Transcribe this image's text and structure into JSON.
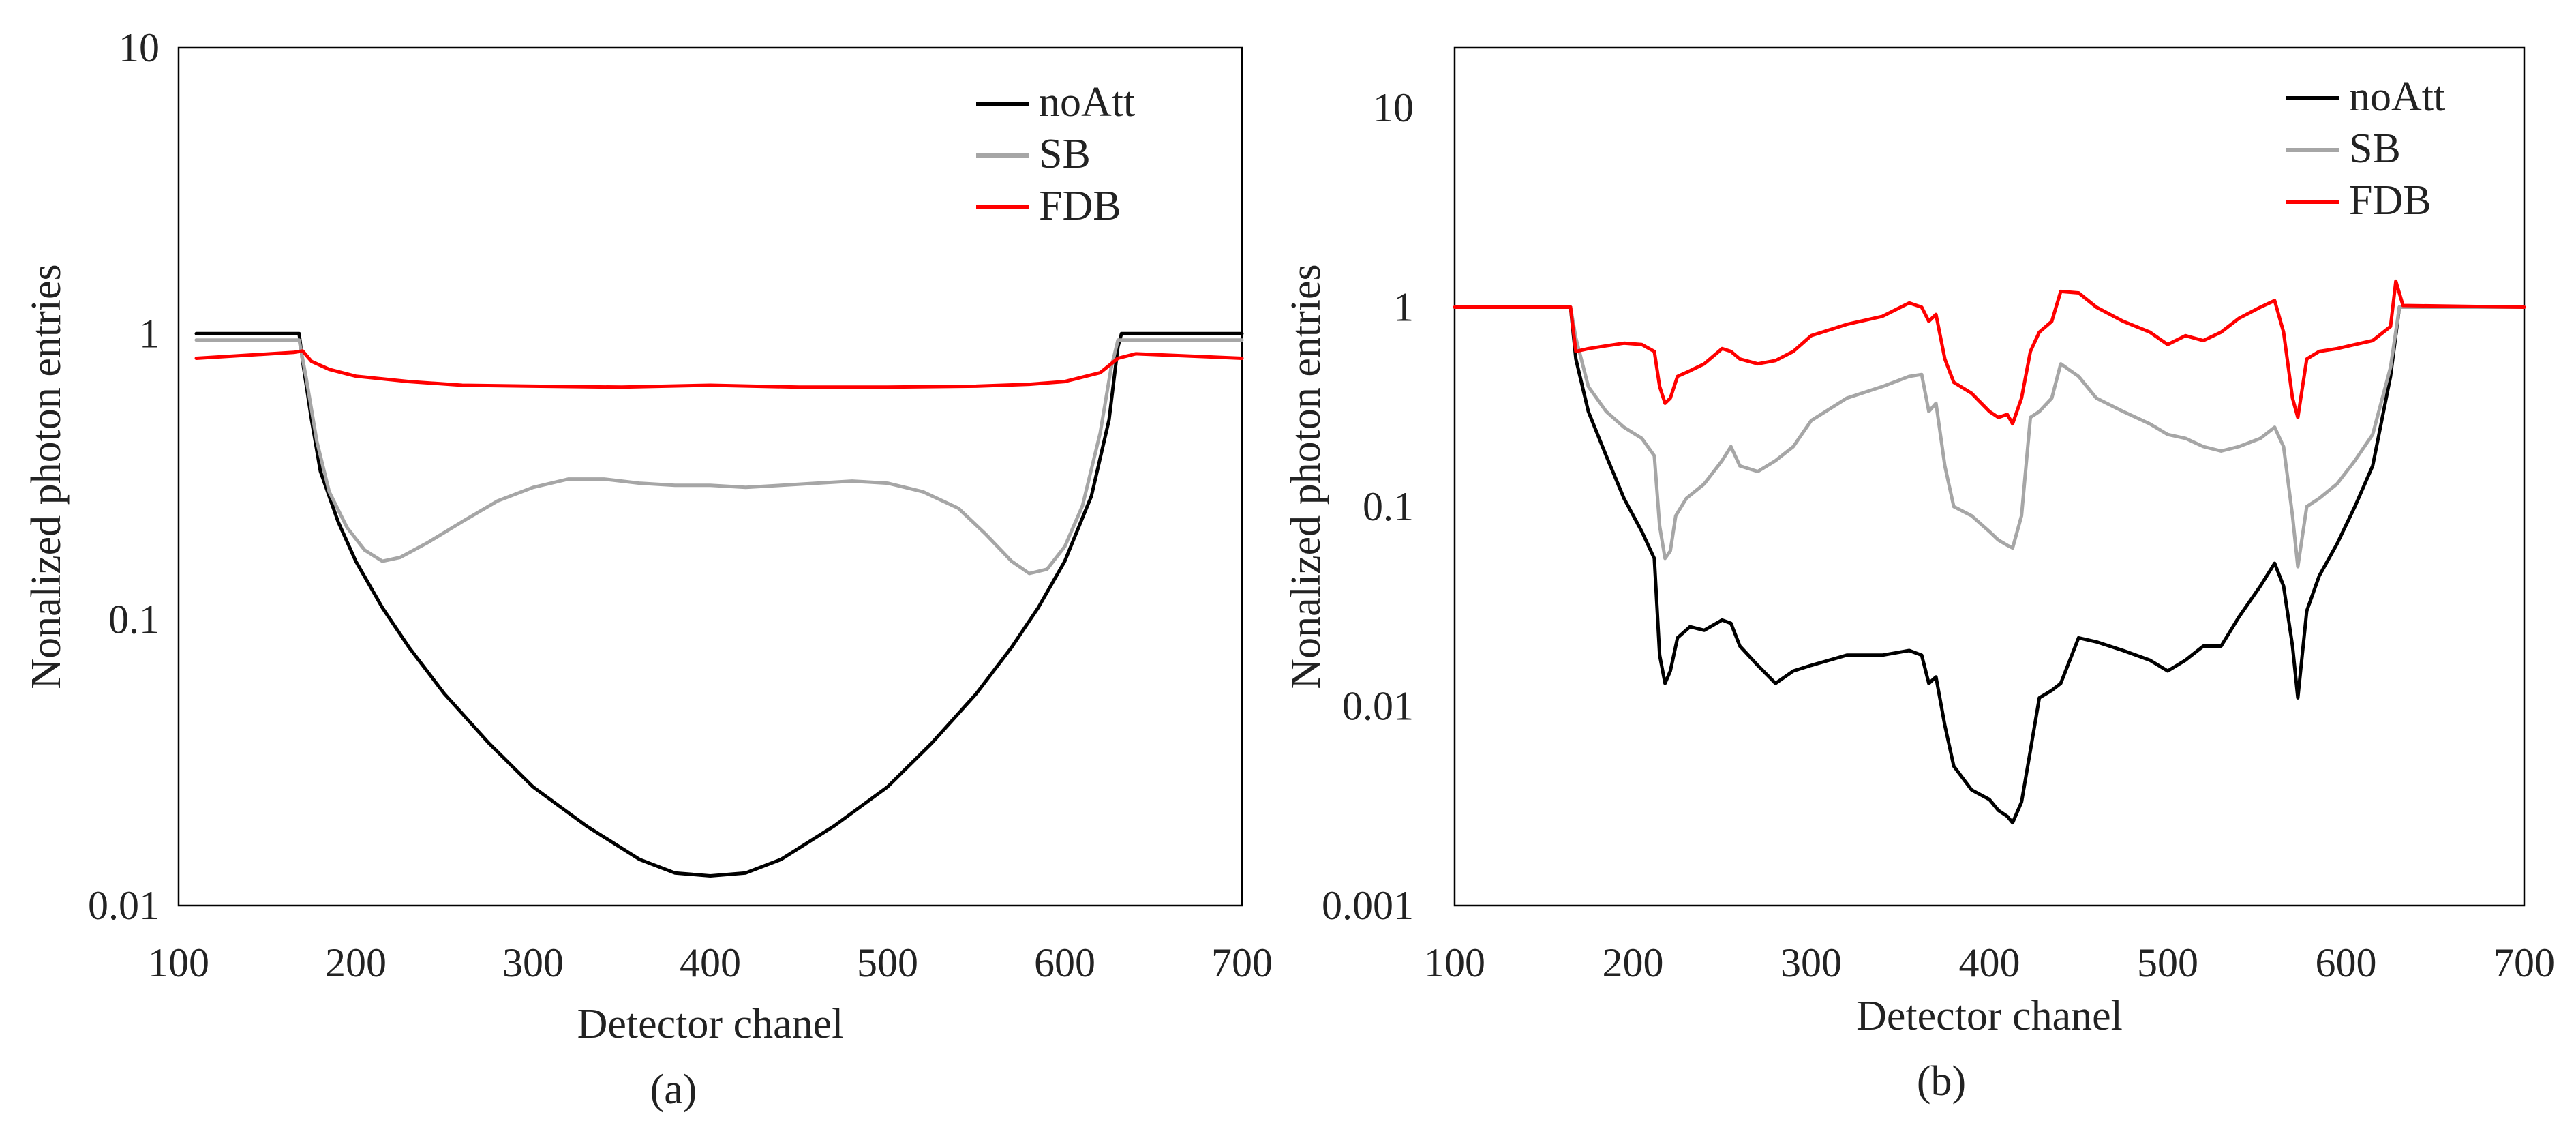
{
  "figure": {
    "panel_labels": [
      "(a)",
      "(b)"
    ]
  },
  "chart_data": [
    {
      "type": "line",
      "panel": "(a)",
      "title": "",
      "xlabel": "Detector chanel",
      "ylabel": "Nonalized photon entries",
      "xlim": [
        100,
        700
      ],
      "ylim": [
        0.01,
        10
      ],
      "yscale": "log",
      "xticks": [
        "100",
        "200",
        "300",
        "400",
        "500",
        "600",
        "700"
      ],
      "yticks": [
        "0.01",
        "0.1",
        "1",
        "10"
      ],
      "grid": false,
      "legend_position": "top-right",
      "series": [
        {
          "name": "noAtt",
          "color": "#000000",
          "x": [
            110,
            168,
            170,
            175,
            180,
            190,
            200,
            215,
            230,
            250,
            275,
            300,
            330,
            360,
            380,
            400,
            420,
            440,
            470,
            500,
            525,
            550,
            570,
            585,
            600,
            615,
            625,
            630,
            632,
            700
          ],
          "y": [
            1.0,
            1.0,
            0.8,
            0.5,
            0.33,
            0.22,
            0.16,
            0.11,
            0.08,
            0.055,
            0.037,
            0.026,
            0.019,
            0.0145,
            0.013,
            0.0127,
            0.013,
            0.0145,
            0.019,
            0.026,
            0.037,
            0.055,
            0.08,
            0.11,
            0.16,
            0.27,
            0.5,
            0.9,
            1.0,
            1.0
          ]
        },
        {
          "name": "SB",
          "color": "#a6a6a6",
          "x": [
            110,
            168,
            172,
            178,
            185,
            195,
            205,
            215,
            225,
            240,
            260,
            280,
            300,
            320,
            340,
            360,
            380,
            400,
            420,
            440,
            460,
            480,
            500,
            520,
            540,
            555,
            570,
            580,
            590,
            600,
            610,
            620,
            626,
            630,
            700
          ],
          "y": [
            0.95,
            0.95,
            0.7,
            0.42,
            0.28,
            0.21,
            0.175,
            0.16,
            0.165,
            0.185,
            0.22,
            0.26,
            0.29,
            0.31,
            0.31,
            0.3,
            0.295,
            0.295,
            0.29,
            0.295,
            0.3,
            0.305,
            0.3,
            0.28,
            0.245,
            0.2,
            0.16,
            0.145,
            0.15,
            0.18,
            0.25,
            0.45,
            0.75,
            0.95,
            0.95
          ]
        },
        {
          "name": "FDB",
          "color": "#ff0000",
          "x": [
            110,
            165,
            170,
            175,
            185,
            200,
            230,
            260,
            300,
            350,
            400,
            450,
            500,
            550,
            580,
            600,
            620,
            630,
            640,
            700
          ],
          "y": [
            0.82,
            0.86,
            0.87,
            0.8,
            0.75,
            0.71,
            0.68,
            0.66,
            0.655,
            0.65,
            0.66,
            0.65,
            0.65,
            0.655,
            0.665,
            0.68,
            0.73,
            0.82,
            0.85,
            0.82
          ]
        }
      ]
    },
    {
      "type": "line",
      "panel": "(b)",
      "title": "",
      "xlabel": "Detector chanel",
      "ylabel": "Nonalized photon entries",
      "xlim": [
        100,
        700
      ],
      "ylim": [
        0.001,
        20
      ],
      "yscale": "log",
      "xticks": [
        "100",
        "200",
        "300",
        "400",
        "500",
        "600",
        "700"
      ],
      "yticks": [
        "0.001",
        "0.01",
        "0.1",
        "1",
        "10"
      ],
      "grid": false,
      "legend_position": "top-right",
      "series": [
        {
          "name": "noAtt",
          "color": "#000000",
          "x": [
            100,
            165,
            168,
            175,
            185,
            195,
            205,
            212,
            215,
            218,
            221,
            225,
            232,
            240,
            250,
            255,
            260,
            270,
            280,
            290,
            300,
            320,
            340,
            355,
            362,
            366,
            370,
            375,
            380,
            390,
            400,
            405,
            410,
            413,
            418,
            423,
            428,
            435,
            440,
            450,
            460,
            475,
            490,
            500,
            510,
            520,
            530,
            540,
            552,
            560,
            565,
            570,
            573,
            578,
            585,
            595,
            605,
            615,
            625,
            630,
            700
          ],
          "y": [
            1.0,
            1.0,
            0.55,
            0.3,
            0.18,
            0.11,
            0.075,
            0.055,
            0.018,
            0.013,
            0.015,
            0.022,
            0.025,
            0.024,
            0.027,
            0.026,
            0.02,
            0.016,
            0.013,
            0.015,
            0.016,
            0.018,
            0.018,
            0.019,
            0.018,
            0.013,
            0.014,
            0.008,
            0.005,
            0.0038,
            0.0034,
            0.003,
            0.0028,
            0.0026,
            0.0033,
            0.006,
            0.011,
            0.012,
            0.013,
            0.022,
            0.021,
            0.019,
            0.017,
            0.015,
            0.017,
            0.02,
            0.02,
            0.028,
            0.04,
            0.052,
            0.04,
            0.02,
            0.011,
            0.03,
            0.045,
            0.065,
            0.1,
            0.16,
            0.45,
            1.0,
            1.0
          ]
        },
        {
          "name": "SB",
          "color": "#a6a6a6",
          "x": [
            100,
            165,
            168,
            175,
            185,
            195,
            205,
            212,
            215,
            218,
            221,
            224,
            230,
            240,
            250,
            255,
            260,
            270,
            280,
            290,
            300,
            320,
            340,
            355,
            362,
            366,
            370,
            375,
            380,
            390,
            400,
            405,
            410,
            413,
            418,
            423,
            428,
            435,
            440,
            450,
            460,
            475,
            490,
            500,
            510,
            520,
            530,
            540,
            552,
            560,
            565,
            570,
            573,
            578,
            585,
            595,
            605,
            615,
            625,
            630,
            700
          ],
          "y": [
            1.0,
            1.0,
            0.7,
            0.4,
            0.3,
            0.25,
            0.22,
            0.18,
            0.08,
            0.055,
            0.06,
            0.09,
            0.11,
            0.13,
            0.17,
            0.2,
            0.16,
            0.15,
            0.17,
            0.2,
            0.27,
            0.35,
            0.4,
            0.45,
            0.46,
            0.3,
            0.33,
            0.16,
            0.1,
            0.09,
            0.075,
            0.068,
            0.064,
            0.062,
            0.09,
            0.28,
            0.3,
            0.35,
            0.52,
            0.45,
            0.35,
            0.3,
            0.26,
            0.23,
            0.22,
            0.2,
            0.19,
            0.2,
            0.22,
            0.25,
            0.2,
            0.09,
            0.05,
            0.1,
            0.11,
            0.13,
            0.17,
            0.23,
            0.5,
            1.0,
            1.0
          ]
        },
        {
          "name": "FDB",
          "color": "#ff0000",
          "x": [
            100,
            165,
            168,
            175,
            185,
            195,
            205,
            212,
            215,
            218,
            221,
            225,
            232,
            240,
            250,
            255,
            260,
            270,
            280,
            290,
            300,
            320,
            340,
            355,
            362,
            366,
            370,
            375,
            380,
            390,
            400,
            405,
            410,
            413,
            418,
            423,
            428,
            435,
            440,
            450,
            460,
            475,
            490,
            500,
            510,
            520,
            530,
            540,
            552,
            560,
            565,
            570,
            573,
            578,
            585,
            595,
            605,
            615,
            625,
            628,
            632,
            700
          ],
          "y": [
            1.0,
            1.0,
            0.6,
            0.62,
            0.64,
            0.66,
            0.65,
            0.6,
            0.4,
            0.33,
            0.35,
            0.45,
            0.48,
            0.52,
            0.62,
            0.6,
            0.55,
            0.52,
            0.54,
            0.6,
            0.72,
            0.82,
            0.9,
            1.05,
            1.0,
            0.85,
            0.92,
            0.55,
            0.42,
            0.37,
            0.3,
            0.28,
            0.29,
            0.26,
            0.35,
            0.6,
            0.75,
            0.85,
            1.2,
            1.18,
            1.0,
            0.85,
            0.75,
            0.65,
            0.72,
            0.68,
            0.75,
            0.88,
            1.0,
            1.08,
            0.75,
            0.35,
            0.28,
            0.55,
            0.6,
            0.62,
            0.65,
            0.68,
            0.8,
            1.35,
            1.02,
            1.0
          ]
        }
      ]
    }
  ]
}
